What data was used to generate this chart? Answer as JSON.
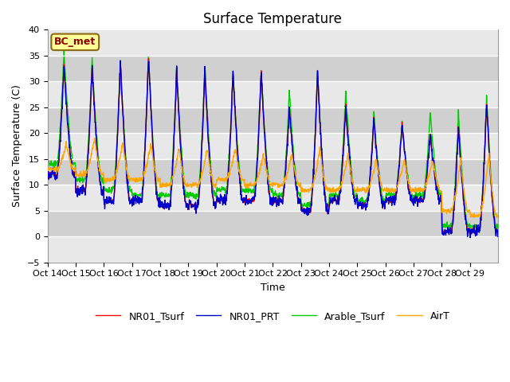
{
  "title": "Surface Temperature",
  "ylabel": "Surface Temperature (C)",
  "xlabel": "Time",
  "ylim": [
    -5,
    40
  ],
  "xlim": [
    0,
    16
  ],
  "annotation": "BC_met",
  "annotation_color": "#8B0000",
  "annotation_bg": "#ffff99",
  "annotation_edge": "#8B6914",
  "bg_color": "#d8d8d8",
  "band_colors": [
    "#e8e8e8",
    "#d0d0d0"
  ],
  "line_colors": [
    "#ff0000",
    "#0000cc",
    "#00cc00",
    "#ffa500"
  ],
  "line_labels": [
    "NR01_Tsurf",
    "NR01_PRT",
    "Arable_Tsurf",
    "AirT"
  ],
  "linewidth": 1.0,
  "xtick_labels": [
    "Oct 14",
    "Oct 15",
    "Oct 16",
    "Oct 17",
    "Oct 18",
    "Oct 19",
    "Oct 20",
    "Oct 21",
    "Oct 22",
    "Oct 23",
    "Oct 24",
    "Oct 25",
    "Oct 26",
    "Oct 27",
    "Oct 28",
    "Oct 29"
  ],
  "ytick_values": [
    -5,
    0,
    5,
    10,
    15,
    20,
    25,
    30,
    35,
    40
  ],
  "n_days": 16,
  "n_per_day": 96,
  "title_fontsize": 12,
  "label_fontsize": 9,
  "tick_fontsize": 8,
  "legend_fontsize": 9,
  "day_peaks_red": [
    33,
    33,
    34,
    35,
    32,
    32,
    32,
    32,
    25,
    32,
    25,
    23,
    22,
    20,
    21,
    26
  ],
  "day_peaks_green": [
    36,
    34,
    34,
    35,
    33,
    33,
    32,
    32,
    28,
    32,
    28,
    24,
    22,
    24,
    24,
    27
  ],
  "day_mins_red": [
    12,
    9,
    7,
    7,
    6,
    6,
    7,
    7,
    7,
    5,
    7,
    6,
    7,
    7,
    1,
    1
  ],
  "day_mins_green": [
    14,
    11,
    9,
    8,
    8,
    8,
    9,
    9,
    8,
    6,
    8,
    7,
    8,
    8,
    2,
    2
  ],
  "day_peaks_air": [
    18,
    19,
    18,
    18,
    17,
    17,
    17,
    16,
    16,
    17,
    16,
    15,
    15,
    15,
    15,
    16
  ],
  "day_mins_air": [
    13,
    12,
    11,
    11,
    10,
    10,
    11,
    10,
    10,
    9,
    9,
    9,
    9,
    9,
    5,
    4
  ]
}
